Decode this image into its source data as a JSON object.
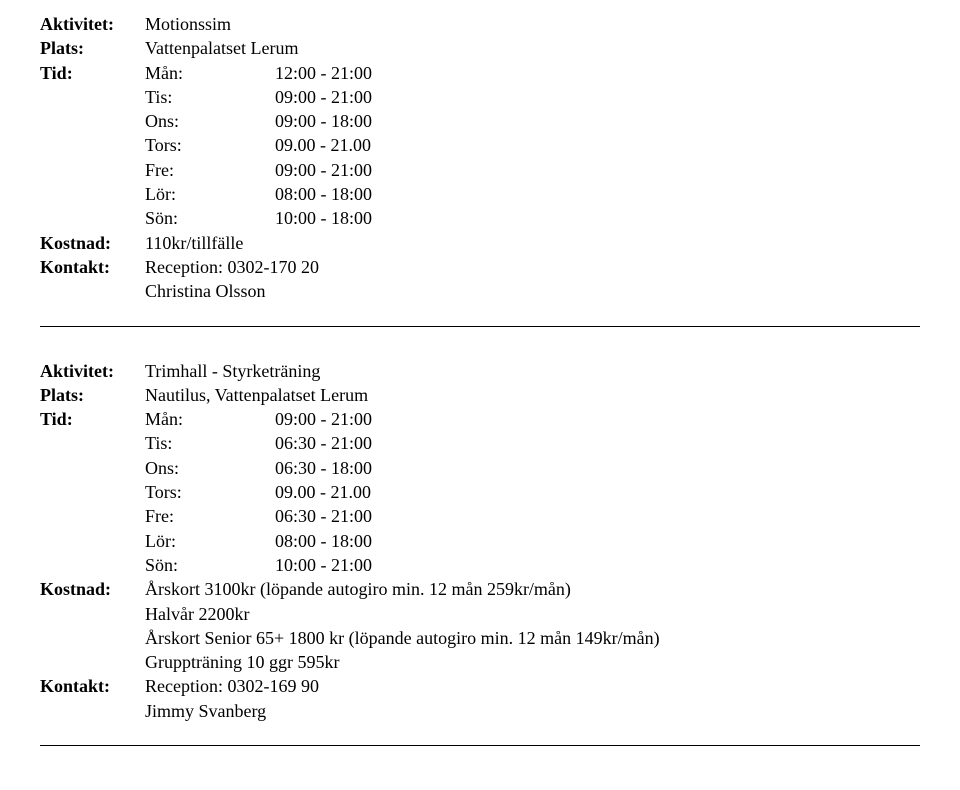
{
  "labels": {
    "aktivitet": "Aktivitet:",
    "plats": "Plats:",
    "tid": "Tid:",
    "kostnad": "Kostnad:",
    "kontakt": "Kontakt:"
  },
  "block1": {
    "aktivitet": "Motionssim",
    "plats": "Vattenpalatset Lerum",
    "schedule": [
      {
        "day": "Mån:",
        "time": "12:00 - 21:00"
      },
      {
        "day": "Tis:",
        "time": "09:00 - 21:00"
      },
      {
        "day": "Ons:",
        "time": "09:00 - 18:00"
      },
      {
        "day": "Tors:",
        "time": "09.00 - 21.00"
      },
      {
        "day": "Fre:",
        "time": "09:00 - 21:00"
      },
      {
        "day": "Lör:",
        "time": "08:00 - 18:00"
      },
      {
        "day": "Sön:",
        "time": "10:00 - 18:00"
      }
    ],
    "kostnad": "110kr/tillfälle",
    "kontakt_lines": [
      "Reception: 0302-170 20",
      "Christina Olsson"
    ]
  },
  "block2": {
    "aktivitet": "Trimhall - Styrketräning",
    "plats": "Nautilus, Vattenpalatset Lerum",
    "schedule": [
      {
        "day": "Mån:",
        "time": "09:00 - 21:00"
      },
      {
        "day": "Tis:",
        "time": "06:30 - 21:00"
      },
      {
        "day": "Ons:",
        "time": "06:30 - 18:00"
      },
      {
        "day": "Tors:",
        "time": "09.00 - 21.00"
      },
      {
        "day": "Fre:",
        "time": "06:30 - 21:00"
      },
      {
        "day": "Lör:",
        "time": "08:00 - 18:00"
      },
      {
        "day": "Sön:",
        "time": "10:00 - 21:00"
      }
    ],
    "kostnad_lines": [
      "Årskort 3100kr (löpande autogiro min. 12 mån 259kr/mån)",
      "Halvår 2200kr",
      "Årskort Senior 65+ 1800 kr (löpande autogiro min. 12 mån 149kr/mån)",
      "Gruppträning 10 ggr 595kr"
    ],
    "kontakt_lines": [
      "Reception: 0302-169 90",
      "Jimmy Svanberg"
    ]
  }
}
